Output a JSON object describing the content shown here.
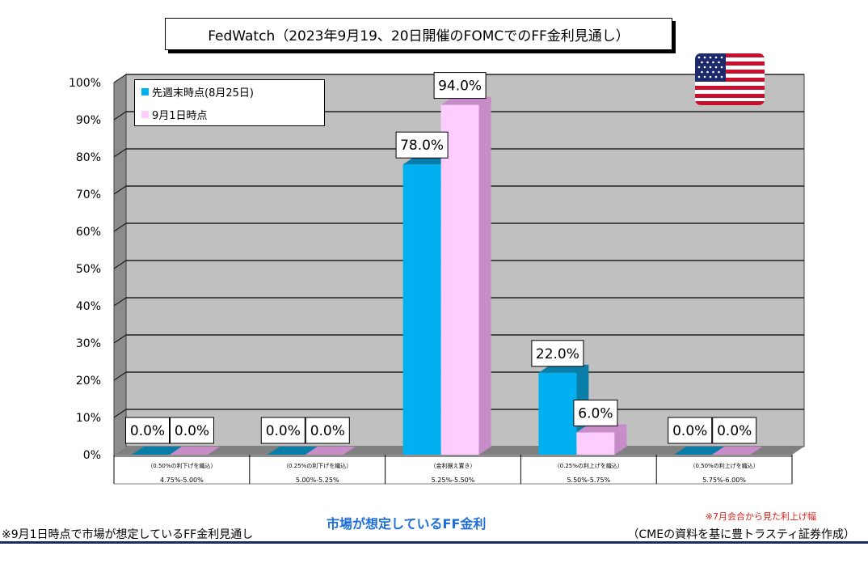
{
  "title": "FedWatch（2023年9月19、20日開催のFOMCでのFF金利見通し）",
  "colors": {
    "series1": "#00b0f0",
    "series1_side": "#0a7ea8",
    "series2": "#ffccff",
    "series2_side": "#c88cc8",
    "wall": "#c0c0c0",
    "floor": "#808080",
    "footer_center": "#1f6fd6",
    "footer_note": "#e0201c",
    "rule": "#1b2c64"
  },
  "footer": {
    "left_note": "※9月1日時点で市場が想定しているFF金利見通し",
    "center_label": "市場が想定しているFF金利",
    "right_note": "※7月会合から見た利上げ幅",
    "source": "（CMEの資料を基に豊トラスティ証券作成）"
  },
  "flag": {
    "icon": "us-flag-icon"
  },
  "chart_data": {
    "type": "bar",
    "title": "FedWatch（2023年9月19、20日開催のFOMCでのFF金利見通し）",
    "categories": [
      "4.75%-5.00%",
      "5.00%-5.25%",
      "5.25%-5.50%",
      "5.50%-5.75%",
      "5.75%-6.00%"
    ],
    "category_notes": [
      "（0.50%の利下げを織込）",
      "（0.25%の利下げを織込）",
      "（金利据え置き）",
      "（0.25%の利上げを織込）",
      "（0.50%の利上げを織込）"
    ],
    "series": [
      {
        "name": "先週末時点(8月25日)",
        "values": [
          0.0,
          0.0,
          78.0,
          22.0,
          0.0
        ]
      },
      {
        "name": "9月1日時点",
        "values": [
          0.0,
          0.0,
          94.0,
          6.0,
          0.0
        ]
      }
    ],
    "data_labels": [
      [
        "0.0%",
        "0.0%",
        "78.0%",
        "22.0%",
        "0.0%"
      ],
      [
        "0.0%",
        "0.0%",
        "94.0%",
        "6.0%",
        "0.0%"
      ]
    ],
    "ylim": [
      0,
      100
    ],
    "yticks": [
      "0%",
      "10%",
      "20%",
      "30%",
      "40%",
      "50%",
      "60%",
      "70%",
      "80%",
      "90%",
      "100%"
    ],
    "grid": true,
    "legend_position": "top-left"
  }
}
